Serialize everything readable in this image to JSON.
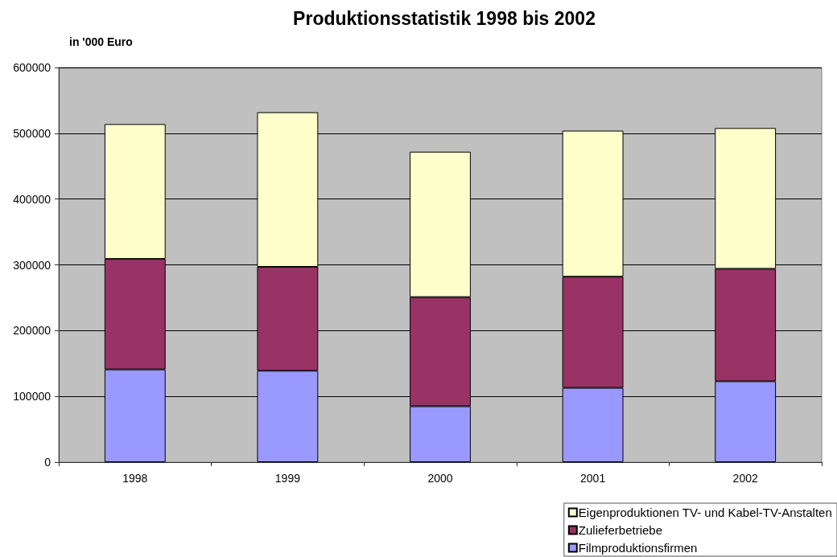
{
  "chart_data": {
    "type": "bar",
    "title": "Produktionsstatistik 1998 bis 2002",
    "ylabel": "in '000 Euro",
    "categories": [
      "1998",
      "1999",
      "2000",
      "2001",
      "2002"
    ],
    "series": [
      {
        "name": "Filmproduktionsfirmen",
        "color": "#9999ff",
        "values": [
          141000,
          139000,
          85000,
          113000,
          123000
        ]
      },
      {
        "name": "Zulieferbetriebe",
        "color": "#993366",
        "values": [
          168000,
          158000,
          166000,
          169000,
          171000
        ]
      },
      {
        "name": "Eigenproduktionen TV- und Kabel-TV-Anstalten",
        "color": "#ffffcc",
        "values": [
          205000,
          235000,
          221000,
          222000,
          214000
        ]
      }
    ],
    "stacked": true,
    "ylim": [
      0,
      600000
    ],
    "yticks": [
      0,
      100000,
      200000,
      300000,
      400000,
      500000,
      600000
    ],
    "grid": "y",
    "legend": "bottom right"
  }
}
